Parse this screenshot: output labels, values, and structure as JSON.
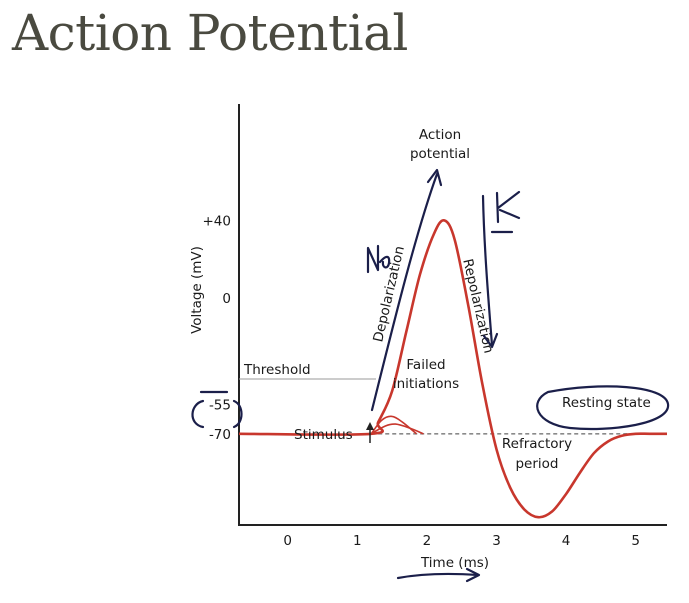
{
  "slide": {
    "title": "Action Potential"
  },
  "chart_data": {
    "type": "line",
    "title": "",
    "xlabel": "Time (ms)",
    "ylabel": "Voltage (mV)",
    "xlim": [
      -0.7,
      5.45
    ],
    "ylim": [
      -117,
      100
    ],
    "x_ticks": [
      0,
      1,
      2,
      3,
      4,
      5
    ],
    "y_ticks": [
      {
        "value": 40,
        "label": "+40"
      },
      {
        "value": 0,
        "label": "0"
      },
      {
        "value": -55,
        "label": "-55"
      },
      {
        "value": -70,
        "label": "-70"
      }
    ],
    "series": [
      {
        "role": "action-potential",
        "color": "#c8372d",
        "x": [
          -0.7,
          1.2,
          1.3,
          1.5,
          1.7,
          1.9,
          2.1,
          2.25,
          2.4,
          2.6,
          2.8,
          3.0,
          3.2,
          3.4,
          3.6,
          3.8,
          4.0,
          4.2,
          4.4,
          4.6,
          4.8,
          5.0,
          5.2,
          5.45
        ],
        "y": [
          -70,
          -70,
          -64,
          -48,
          -18,
          12,
          33,
          40,
          30,
          -5,
          -45,
          -78,
          -98,
          -109,
          -113,
          -110,
          -101,
          -90,
          -80,
          -74,
          -71,
          -70,
          -70,
          -70
        ]
      },
      {
        "role": "failed-initiation-1",
        "color": "#c8372d",
        "x": [
          1.2,
          1.35,
          1.5,
          1.65,
          1.85
        ],
        "y": [
          -70,
          -63,
          -61,
          -64,
          -70
        ]
      },
      {
        "role": "failed-initiation-2",
        "color": "#c8372d",
        "x": [
          1.2,
          1.4,
          1.55,
          1.75,
          1.95
        ],
        "y": [
          -70,
          -66,
          -65,
          -67,
          -70
        ]
      },
      {
        "role": "resting-baseline",
        "color": "#8a8a8a",
        "style": "dashed",
        "x": [
          1.2,
          5.45
        ],
        "y": [
          -70,
          -70
        ]
      }
    ],
    "annotations": [
      {
        "id": "action_potential_1",
        "text": "Action"
      },
      {
        "id": "action_potential_2",
        "text": "potential"
      },
      {
        "id": "depolarization",
        "text": "Depolarization"
      },
      {
        "id": "repolarization",
        "text": "Repolarization"
      },
      {
        "id": "threshold",
        "text": "Threshold"
      },
      {
        "id": "failed_1",
        "text": "Failed"
      },
      {
        "id": "failed_2",
        "text": "initiations"
      },
      {
        "id": "stimulus",
        "text": "Stimulus"
      },
      {
        "id": "resting_state",
        "text": "Resting state"
      },
      {
        "id": "refractory_1",
        "text": "Refractory"
      },
      {
        "id": "refractory_2",
        "text": "period"
      }
    ],
    "handwritten_marks": [
      "Na",
      "K"
    ]
  }
}
